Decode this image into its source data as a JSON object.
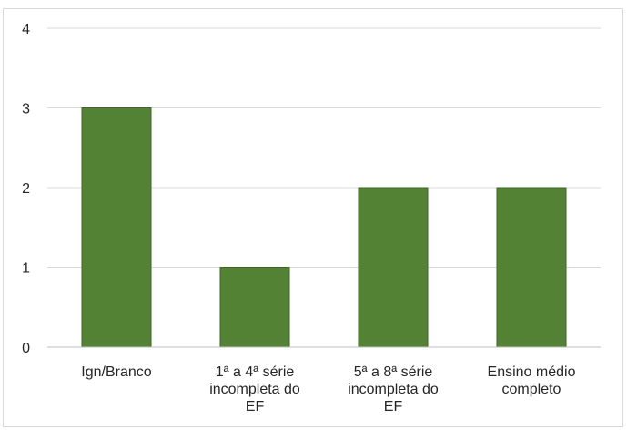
{
  "chart_data": {
    "type": "bar",
    "categories": [
      [
        "Ign/Branco"
      ],
      [
        "1ª a 4ª série",
        "incompleta do",
        "EF"
      ],
      [
        "5ª a 8ª série",
        "incompleta do",
        "EF"
      ],
      [
        "Ensino médio",
        "completo"
      ]
    ],
    "values": [
      3,
      1,
      2,
      2
    ],
    "ylim": [
      0,
      4
    ],
    "yticks": [
      "0",
      "1",
      "2",
      "3",
      "4"
    ],
    "grid": true,
    "title": "",
    "xlabel": "",
    "ylabel": "",
    "colors": {
      "bar": "#548235",
      "bar_border": "#3e6626",
      "grid": "#d9d9d9",
      "axis": "#bfbfbf"
    }
  }
}
